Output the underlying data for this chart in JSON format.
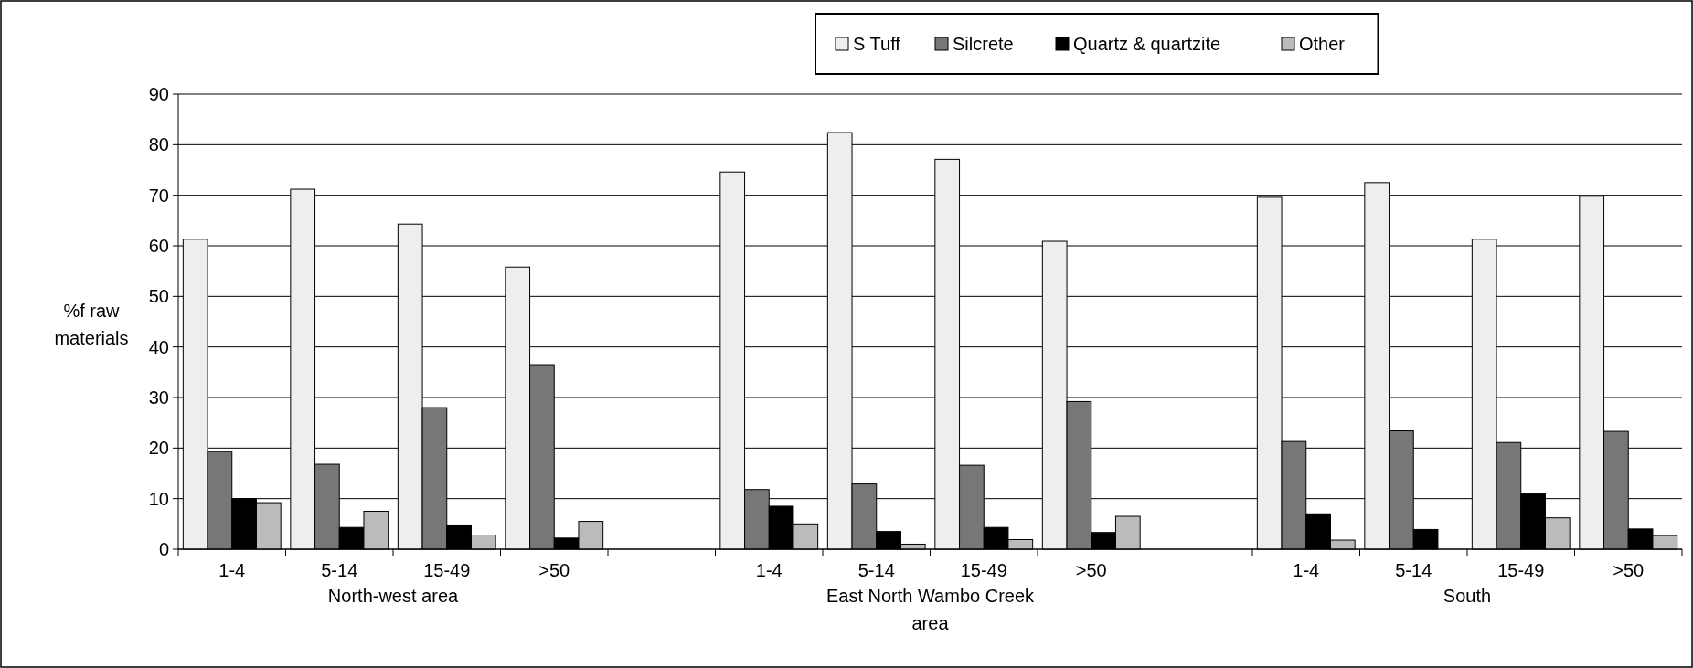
{
  "chart_data": {
    "type": "bar",
    "categories": [
      "1-4",
      "5-14",
      "15-49",
      ">50",
      null,
      "1-4",
      "5-14",
      "15-49",
      ">50",
      null,
      "1-4",
      "5-14",
      "15-49",
      ">50"
    ],
    "series": [
      {
        "name": "S Tuff",
        "color": "#eeeeee",
        "values": [
          61.3,
          71.2,
          64.3,
          55.8,
          null,
          74.6,
          82.4,
          77.1,
          60.9,
          null,
          69.6,
          72.5,
          61.3,
          69.8
        ]
      },
      {
        "name": "Silcrete",
        "color": "#777777",
        "values": [
          19.3,
          16.8,
          28,
          36.5,
          null,
          11.8,
          12.9,
          16.6,
          29.2,
          null,
          21.3,
          23.4,
          21.1,
          23.3
        ]
      },
      {
        "name": "Quartz & quartzite",
        "color": "#000000",
        "values": [
          10,
          4.3,
          4.8,
          2.2,
          null,
          8.5,
          3.5,
          4.3,
          3.3,
          null,
          7,
          3.9,
          11,
          4
        ]
      },
      {
        "name": "Other",
        "color": "#bbbbbb",
        "values": [
          9.2,
          7.5,
          2.8,
          5.5,
          null,
          5,
          1,
          1.9,
          6.5,
          null,
          1.8,
          0,
          6.2,
          2.7
        ]
      }
    ],
    "ylabel": "%f raw materials",
    "annotations": [
      "North-west area",
      "East North Wambo Creek area",
      "South"
    ],
    "ylim": [
      0,
      90
    ],
    "yticks": [
      0,
      10,
      20,
      30,
      40,
      50,
      60,
      70,
      80,
      90
    ],
    "grid": "y",
    "legend": "top"
  }
}
